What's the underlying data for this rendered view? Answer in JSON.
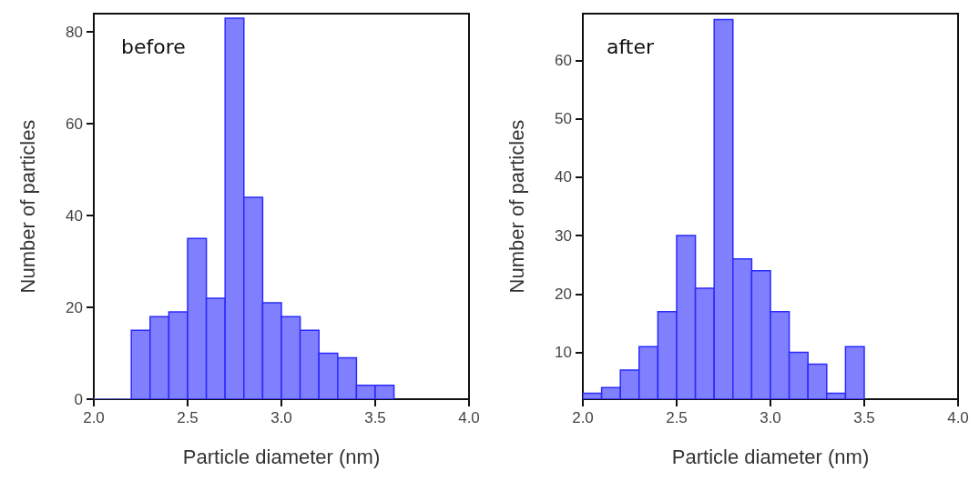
{
  "chart_data": [
    {
      "type": "histogram",
      "xlabel": "Particle diameter (nm)",
      "ylabel": "Number of particles",
      "annotations": [
        "before"
      ],
      "color": "#8080ff",
      "bins": [
        2.0,
        2.1,
        2.2,
        2.3,
        2.4,
        2.5,
        2.6,
        2.7,
        2.8,
        2.9,
        3.0,
        3.1,
        3.2,
        3.3,
        3.4,
        3.5,
        3.6
      ],
      "values": [
        0,
        0,
        15,
        18,
        19,
        35,
        22,
        83,
        44,
        21,
        18,
        15,
        10,
        9,
        3,
        3
      ],
      "xlim": [
        2.0,
        4.0
      ],
      "xticks": [
        {
          "value": 2.0,
          "label": "2.0"
        },
        {
          "value": 2.5,
          "label": "2.5"
        },
        {
          "value": 3.0,
          "label": "3.0"
        },
        {
          "value": 3.5,
          "label": "3.5"
        },
        {
          "value": 4.0,
          "label": "4.0"
        }
      ],
      "ylim": [
        0,
        84
      ],
      "yticks": [
        0,
        20,
        40,
        60,
        80
      ],
      "grid": false
    },
    {
      "type": "histogram",
      "xlabel": "Particle diameter (nm)",
      "ylabel": "Number of particles",
      "annotations": [
        "after"
      ],
      "color": "#8080ff",
      "bins": [
        2.0,
        2.1,
        2.2,
        2.3,
        2.4,
        2.5,
        2.6,
        2.7,
        2.8,
        2.9,
        3.0,
        3.1,
        3.2,
        3.3,
        3.4,
        3.5
      ],
      "values": [
        3,
        4,
        7,
        11,
        17,
        30,
        21,
        67,
        26,
        24,
        17,
        10,
        8,
        3,
        11
      ],
      "xlim": [
        2.0,
        4.0
      ],
      "xticks": [
        {
          "value": 2.0,
          "label": "2.0"
        },
        {
          "value": 2.5,
          "label": "2.5"
        },
        {
          "value": 3.0,
          "label": "3.0"
        },
        {
          "value": 3.5,
          "label": "3.5"
        },
        {
          "value": 4.0,
          "label": "4.0"
        }
      ],
      "ylim": [
        2,
        68
      ],
      "yticks": [
        10,
        20,
        30,
        40,
        50,
        60
      ],
      "grid": false
    }
  ]
}
